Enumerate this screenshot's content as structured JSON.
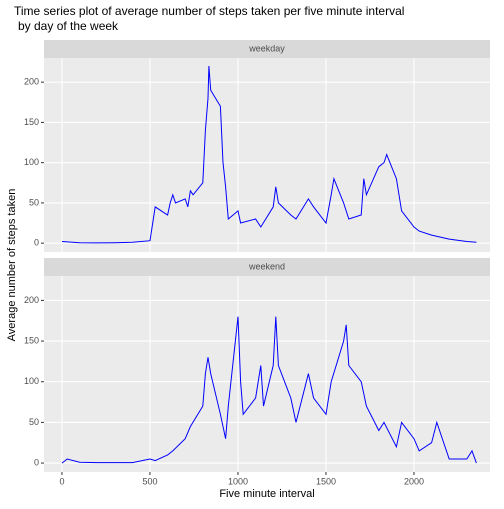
{
  "chart_data": {
    "type": "line",
    "facet": true,
    "grid": true,
    "title": [
      "Time series plot of average number of steps taken per five minute interval",
      "by day of the week"
    ],
    "xlabel": "Five minute interval",
    "ylabel": "Average number of steps taken",
    "xlim": [
      -102,
      2432
    ],
    "xticks": [
      0,
      500,
      1000,
      1500,
      2000
    ],
    "ylim": [
      -11,
      230
    ],
    "yticks": [
      0,
      50,
      100,
      150,
      200
    ],
    "series": [
      {
        "name": "weekday",
        "color": "#0000ff",
        "x": [
          0,
          100,
          200,
          300,
          400,
          500,
          530,
          600,
          615,
          630,
          645,
          700,
          715,
          730,
          745,
          800,
          815,
          830,
          835,
          845,
          900,
          915,
          930,
          945,
          1000,
          1015,
          1100,
          1130,
          1200,
          1215,
          1230,
          1300,
          1330,
          1400,
          1430,
          1500,
          1530,
          1545,
          1600,
          1630,
          1700,
          1715,
          1730,
          1800,
          1830,
          1845,
          1900,
          1930,
          2000,
          2030,
          2100,
          2200,
          2300,
          2355
        ],
        "values": [
          2,
          0.5,
          0.3,
          0.5,
          1,
          3,
          45,
          35,
          50,
          60,
          50,
          55,
          45,
          65,
          60,
          75,
          140,
          180,
          220,
          190,
          170,
          100,
          70,
          30,
          40,
          25,
          30,
          20,
          45,
          70,
          50,
          35,
          30,
          55,
          45,
          25,
          60,
          80,
          50,
          30,
          35,
          80,
          60,
          95,
          100,
          110,
          80,
          40,
          20,
          15,
          10,
          5,
          2,
          1
        ]
      },
      {
        "name": "weekend",
        "color": "#0000ff",
        "x": [
          0,
          30,
          100,
          200,
          400,
          500,
          530,
          600,
          630,
          700,
          730,
          800,
          815,
          830,
          845,
          900,
          930,
          945,
          1000,
          1015,
          1030,
          1100,
          1130,
          1145,
          1200,
          1215,
          1230,
          1300,
          1330,
          1400,
          1430,
          1500,
          1530,
          1600,
          1615,
          1630,
          1700,
          1730,
          1800,
          1830,
          1900,
          1930,
          2000,
          2030,
          2100,
          2130,
          2200,
          2300,
          2330,
          2355
        ],
        "values": [
          0,
          5,
          1,
          0.5,
          0.5,
          5,
          3,
          10,
          15,
          30,
          45,
          70,
          110,
          130,
          110,
          60,
          30,
          70,
          180,
          100,
          60,
          80,
          120,
          70,
          120,
          180,
          120,
          80,
          50,
          110,
          80,
          60,
          100,
          150,
          170,
          120,
          100,
          70,
          40,
          50,
          20,
          50,
          30,
          15,
          25,
          50,
          5,
          5,
          15,
          0
        ]
      }
    ]
  }
}
